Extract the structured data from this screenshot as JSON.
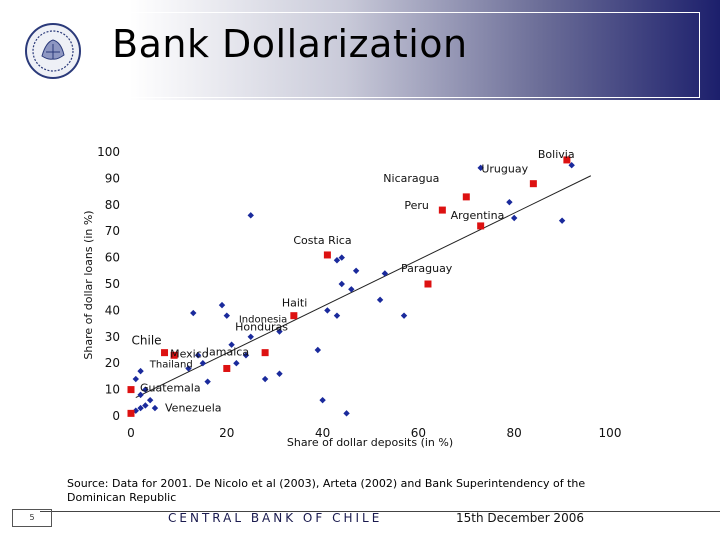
{
  "title": "Bank Dollarization",
  "source": "Source: Data for 2001. De Nicolo et al (2003), Arteta (2002) and Bank Superintendency of the Dominican Republic",
  "footer": {
    "page": "5",
    "bank": "CENTRAL BANK OF CHILE",
    "date": "15th December 2006"
  },
  "colors": {
    "series_labeled": "#dd1111",
    "series_other": "#1a2a9c",
    "trend": "#222222"
  },
  "chart_data": {
    "type": "scatter",
    "xlabel": "Share of dollar deposits (in %)",
    "ylabel": "Share of dollar loans (in %)",
    "xlim": [
      0,
      100
    ],
    "ylim": [
      0,
      100
    ],
    "xticks": [
      "0",
      "20",
      "40",
      "60",
      "80",
      "100"
    ],
    "yticks": [
      "0",
      "10",
      "20",
      "30",
      "40",
      "50",
      "60",
      "70",
      "80",
      "90",
      "100"
    ],
    "grid": false,
    "trendline": [
      [
        1,
        7
      ],
      [
        96,
        91
      ]
    ],
    "labeled_points": [
      {
        "label": "Bolivia",
        "x": 91,
        "y": 97
      },
      {
        "label": "Uruguay",
        "x": 84,
        "y": 88
      },
      {
        "label": "Nicaragua",
        "x": 70,
        "y": 83
      },
      {
        "label": "Peru",
        "x": 65,
        "y": 78
      },
      {
        "label": "Argentina",
        "x": 73,
        "y": 72
      },
      {
        "label": "Costa Rica",
        "x": 41,
        "y": 61
      },
      {
        "label": "Paraguay",
        "x": 62,
        "y": 50
      },
      {
        "label": "Haiti",
        "x": 34,
        "y": 38
      },
      {
        "label": "Indonesia",
        "x": 34,
        "y": 38
      },
      {
        "label": "Honduras",
        "x": 28,
        "y": 24
      },
      {
        "label": "Chile",
        "x": 7,
        "y": 24
      },
      {
        "label": "Mexico",
        "x": 9,
        "y": 23
      },
      {
        "label": "Jamaica",
        "x": 20,
        "y": 18
      },
      {
        "label": "Thailand",
        "x": 20,
        "y": 18
      },
      {
        "label": "Guatemala",
        "x": 0,
        "y": 10
      },
      {
        "label": "Venezuela",
        "x": 0,
        "y": 1
      }
    ],
    "other_points": [
      [
        73,
        94
      ],
      [
        92,
        95
      ],
      [
        79,
        81
      ],
      [
        80,
        75
      ],
      [
        90,
        74
      ],
      [
        25,
        76
      ],
      [
        43,
        59
      ],
      [
        44,
        60
      ],
      [
        47,
        55
      ],
      [
        53,
        54
      ],
      [
        44,
        50
      ],
      [
        46,
        48
      ],
      [
        52,
        44
      ],
      [
        57,
        38
      ],
      [
        41,
        40
      ],
      [
        43,
        38
      ],
      [
        13,
        39
      ],
      [
        19,
        42
      ],
      [
        20,
        38
      ],
      [
        31,
        32
      ],
      [
        25,
        30
      ],
      [
        21,
        27
      ],
      [
        24,
        23
      ],
      [
        22,
        20
      ],
      [
        39,
        25
      ],
      [
        45,
        1
      ],
      [
        14,
        23
      ],
      [
        15,
        20
      ],
      [
        12,
        18
      ],
      [
        16,
        13
      ],
      [
        28,
        14
      ],
      [
        31,
        16
      ],
      [
        2,
        17
      ],
      [
        1,
        14
      ],
      [
        3,
        10
      ],
      [
        2,
        8
      ],
      [
        4,
        6
      ],
      [
        3,
        4
      ],
      [
        1,
        2
      ],
      [
        2,
        3
      ],
      [
        5,
        3
      ],
      [
        40,
        6
      ]
    ]
  }
}
